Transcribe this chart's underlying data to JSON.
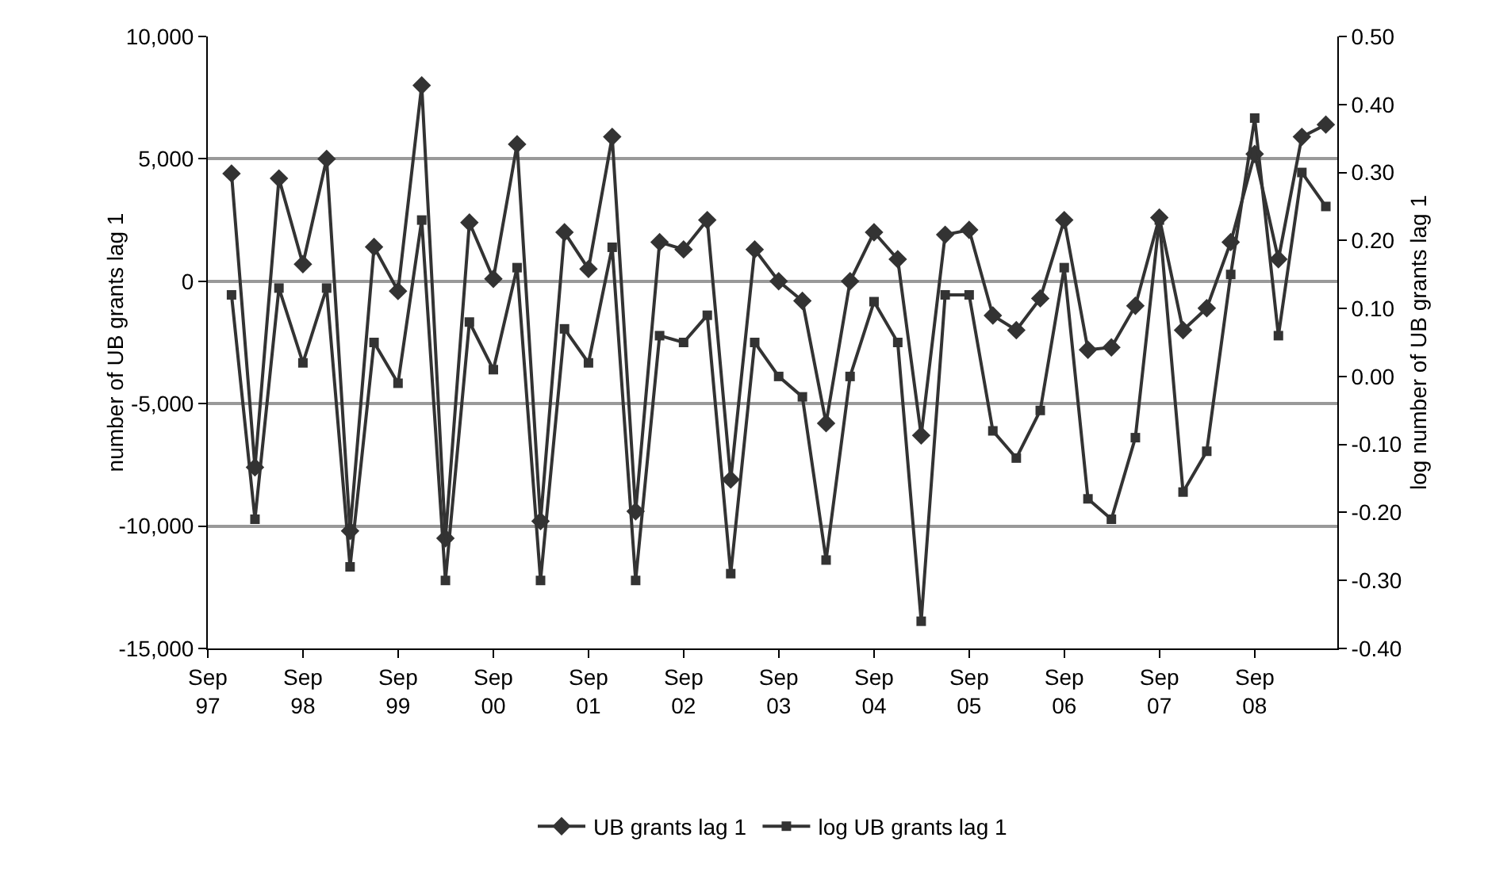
{
  "chart_data": {
    "type": "line",
    "ylabel": "number of UB grants lag 1",
    "y2label": "log number of UB grants lag 1",
    "x": [
      "1997-12",
      "1998-03",
      "1998-06",
      "1998-09",
      "1998-12",
      "1999-03",
      "1999-06",
      "1999-09",
      "1999-12",
      "2000-03",
      "2000-06",
      "2000-09",
      "2000-12",
      "2001-03",
      "2001-06",
      "2001-09",
      "2001-12",
      "2002-03",
      "2002-06",
      "2002-09",
      "2002-12",
      "2003-03",
      "2003-06",
      "2003-09",
      "2003-12",
      "2004-03",
      "2004-06",
      "2004-09",
      "2004-12",
      "2005-03",
      "2005-06",
      "2005-09",
      "2005-12",
      "2006-03",
      "2006-06",
      "2006-09",
      "2006-12",
      "2007-03",
      "2007-06",
      "2007-09",
      "2007-12",
      "2008-03",
      "2008-06",
      "2008-09",
      "2008-12",
      "2009-03",
      "2009-06"
    ],
    "series": [
      {
        "name": "UB grants lag 1",
        "color": "#333333",
        "marker": "diamond",
        "values": [
          4400,
          -7600,
          4200,
          700,
          5000,
          -10200,
          1400,
          -400,
          8000,
          -10500,
          2400,
          100,
          5600,
          -9800,
          2000,
          500,
          5900,
          -9400,
          1600,
          1300,
          2500,
          -8100,
          1300,
          0,
          -800,
          -5800,
          0,
          2000,
          900,
          -6300,
          1900,
          2100,
          -1400,
          -2000,
          -700,
          2500,
          -2800,
          -2700,
          -1000,
          2600,
          -2000,
          -1100,
          1600,
          5200,
          900,
          5900,
          6400
        ]
      },
      {
        "name": "log UB grants lag 1",
        "color": "#333333",
        "marker": "square",
        "axis": "y2",
        "values": [
          0.12,
          -0.21,
          0.13,
          0.02,
          0.13,
          -0.28,
          0.05,
          -0.01,
          0.23,
          -0.3,
          0.08,
          0.01,
          0.16,
          -0.3,
          0.07,
          0.02,
          0.19,
          -0.3,
          0.06,
          0.05,
          0.09,
          -0.29,
          0.05,
          0.0,
          -0.03,
          -0.27,
          0.0,
          0.11,
          0.05,
          -0.36,
          0.12,
          0.12,
          -0.08,
          -0.12,
          -0.05,
          0.16,
          -0.18,
          -0.21,
          -0.09,
          0.23,
          -0.17,
          -0.11,
          0.15,
          0.38,
          0.06,
          0.3,
          0.25
        ]
      }
    ],
    "xlim": [
      "1997-09-01",
      "2009-07-15"
    ],
    "xticks": [
      {
        "value": "1997-09",
        "label": "Sep 97"
      },
      {
        "value": "1998-09",
        "label": "Sep 98"
      },
      {
        "value": "1999-09",
        "label": "Sep 99"
      },
      {
        "value": "2000-09",
        "label": "Sep 00"
      },
      {
        "value": "2001-09",
        "label": "Sep 01"
      },
      {
        "value": "2002-09",
        "label": "Sep 02"
      },
      {
        "value": "2003-09",
        "label": "Sep 03"
      },
      {
        "value": "2004-09",
        "label": "Sep 04"
      },
      {
        "value": "2005-09",
        "label": "Sep 05"
      },
      {
        "value": "2006-09",
        "label": "Sep 06"
      },
      {
        "value": "2007-09",
        "label": "Sep 07"
      },
      {
        "value": "2008-09",
        "label": "Sep 08"
      }
    ],
    "ylim": [
      -15000,
      10000
    ],
    "yticks": [
      {
        "value": -15000,
        "label": "-15,000"
      },
      {
        "value": -10000,
        "label": "-10,000"
      },
      {
        "value": -5000,
        "label": "-5,000"
      },
      0,
      {
        "value": 5000,
        "label": "5,000"
      },
      {
        "value": 10000,
        "label": "10,000"
      }
    ],
    "y2lim": [
      -0.4,
      0.5
    ],
    "y2ticks": [
      {
        "value": -0.4,
        "label": "-0.40"
      },
      {
        "value": -0.3,
        "label": "-0.30"
      },
      {
        "value": -0.2,
        "label": "-0.20"
      },
      {
        "value": -0.1,
        "label": "-0.10"
      },
      {
        "value": 0,
        "label": "0.00"
      },
      {
        "value": 0.1,
        "label": "0.10"
      },
      {
        "value": 0.2,
        "label": "0.20"
      },
      {
        "value": 0.3,
        "label": "0.30"
      },
      {
        "value": 0.4,
        "label": "0.40"
      },
      {
        "value": 0.5,
        "label": "0.50"
      }
    ],
    "grid": "y",
    "legend": "bottom",
    "line_style": "solid"
  }
}
